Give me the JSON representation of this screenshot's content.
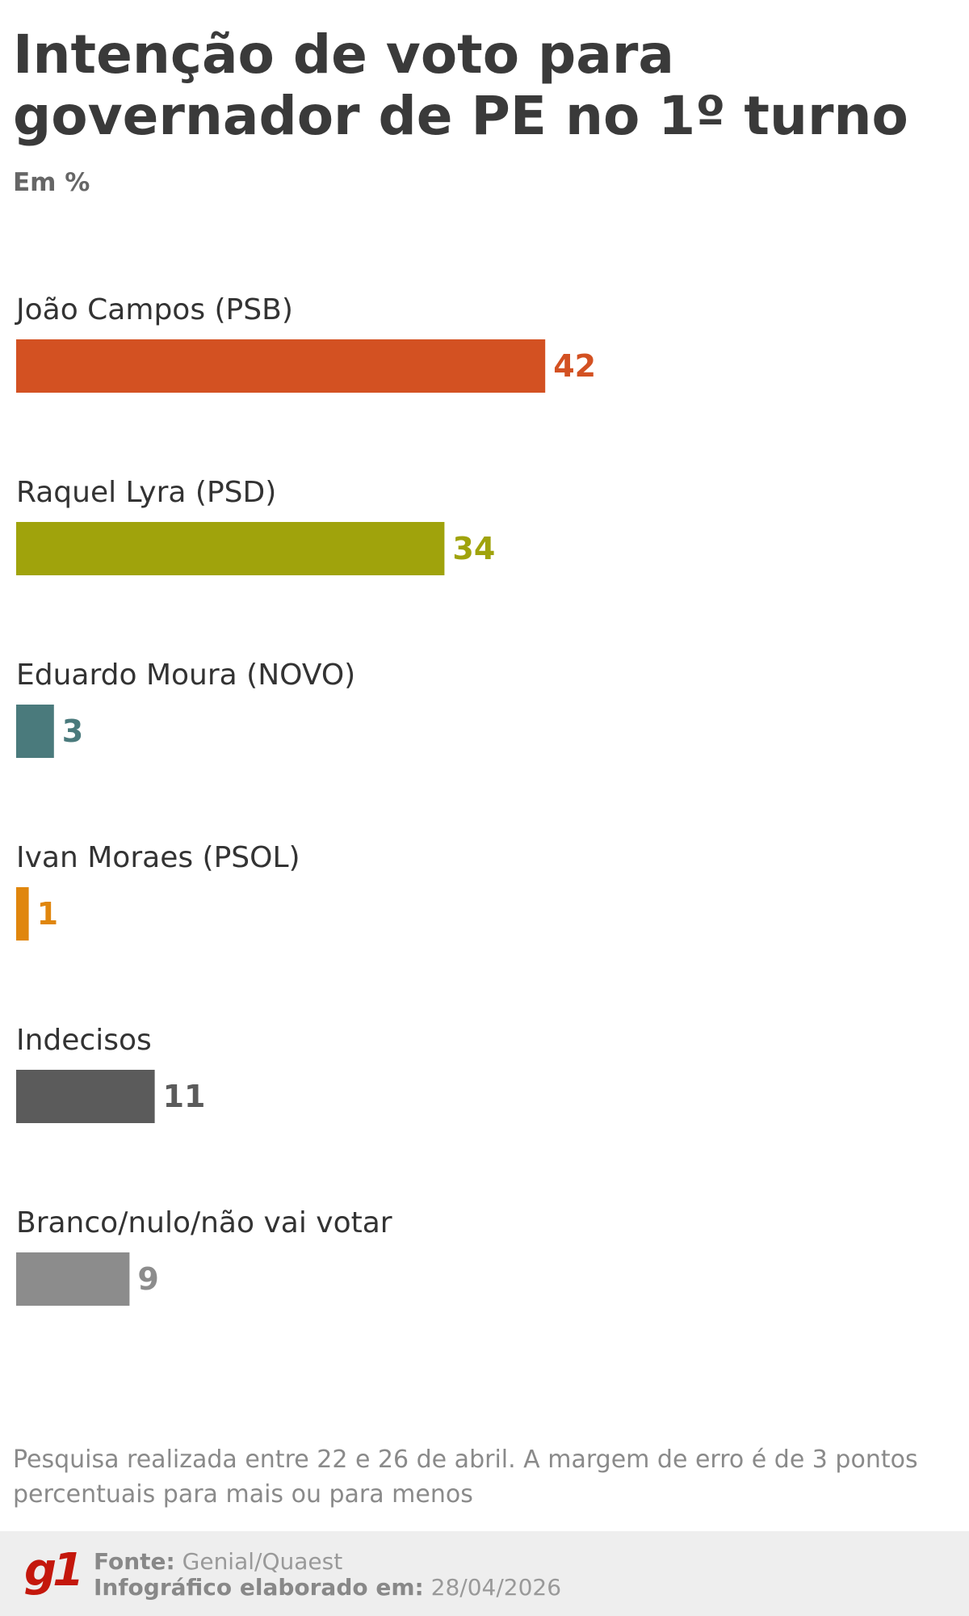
{
  "header": {
    "title": "Intenção de voto para governador de PE no 1º turno",
    "subtitle": "Em %"
  },
  "chart_data": {
    "type": "bar",
    "orientation": "horizontal",
    "title": "Intenção de voto para governador de PE no 1º turno",
    "subtitle": "Em %",
    "categories": [
      "João Campos (PSB)",
      "Raquel Lyra (PSD)",
      "Eduardo Moura (NOVO)",
      "Ivan Moraes (PSOL)",
      "Indecisos",
      "Branco/nulo/não vai votar"
    ],
    "values": [
      42,
      34,
      3,
      1,
      11,
      9
    ],
    "colors": [
      "#d35122",
      "#a0a30c",
      "#4a7a7c",
      "#e0860d",
      "#5b5b5b",
      "#8c8c8c"
    ],
    "xlim": [
      0,
      100
    ],
    "grid": false,
    "legend": "none"
  },
  "footer": {
    "note": "Pesquisa realizada entre 22 e 26 de abril. A margem de erro é de 3 pontos percentuais para mais ou para menos",
    "logo": "g1",
    "source_label": "Fonte:",
    "source_value": "Genial/Quaest",
    "date_label": "Infográfico elaborado em:",
    "date_value": "28/04/2026"
  }
}
